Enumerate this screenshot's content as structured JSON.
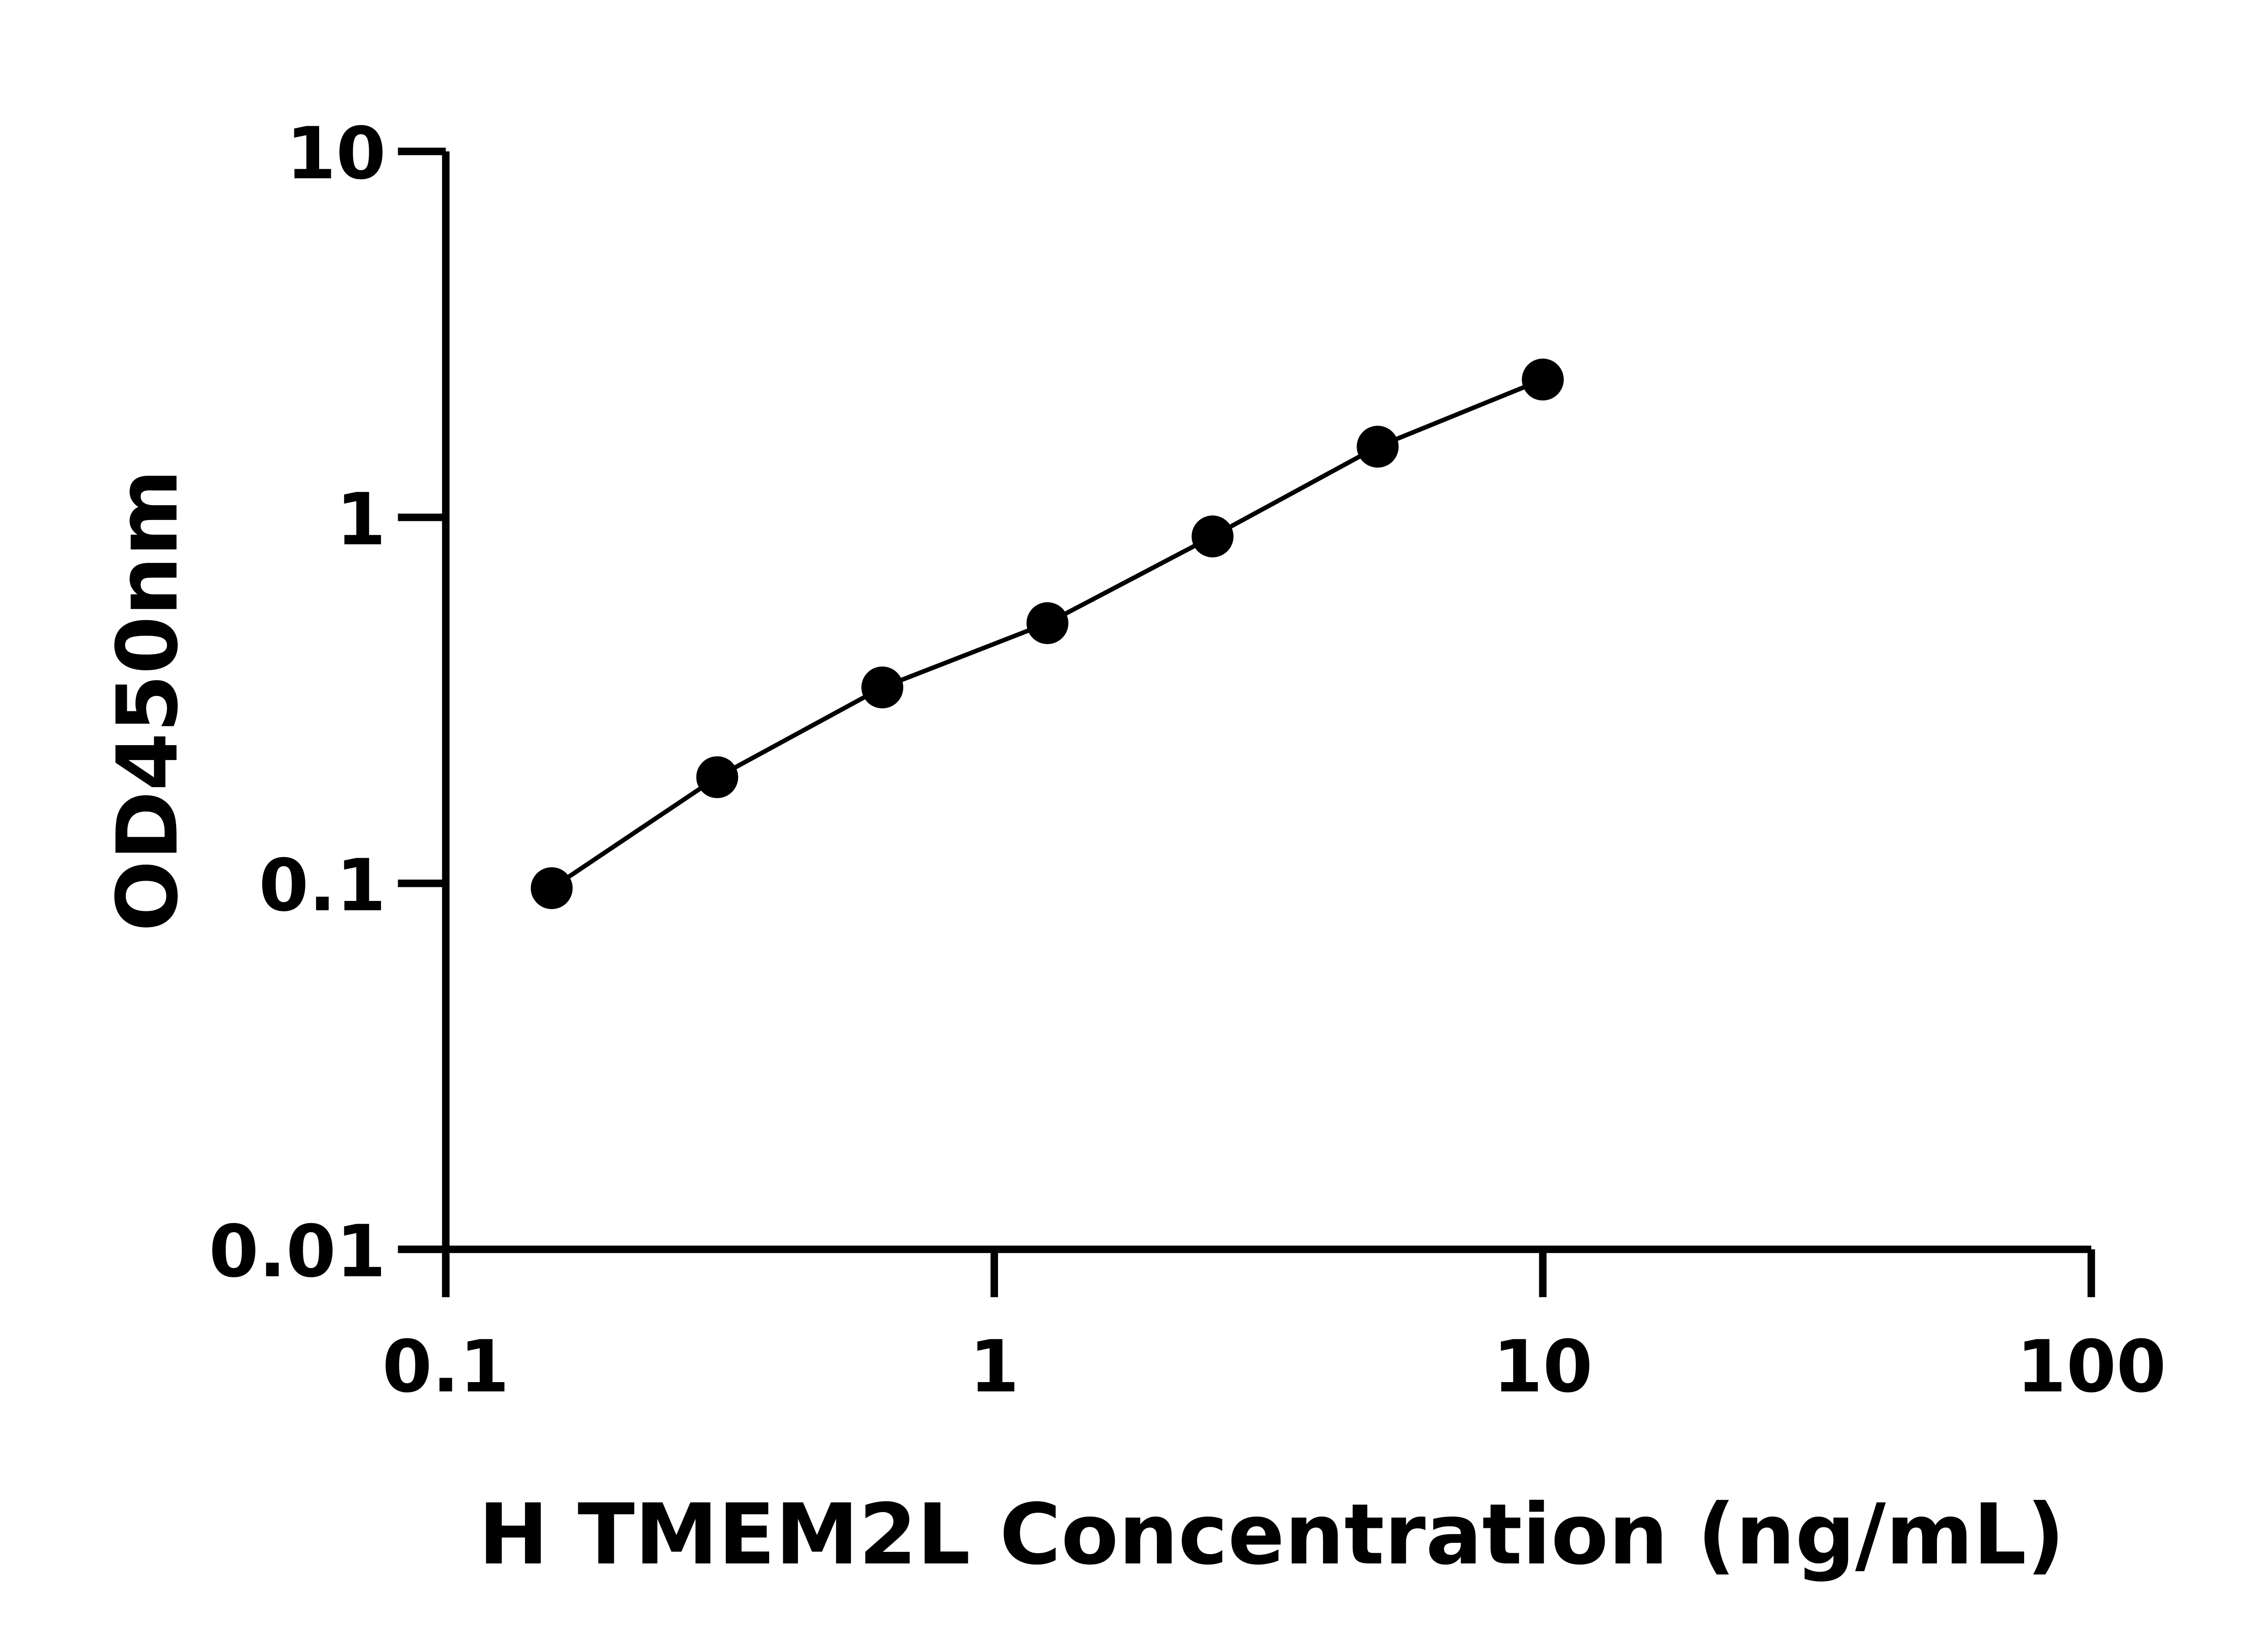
{
  "chart_data": {
    "type": "line",
    "title": "",
    "xlabel": "H TMEM2L Concentration (ng/mL)",
    "ylabel": "OD450nm",
    "x_scale": "log",
    "y_scale": "log",
    "xlim": [
      0.1,
      100
    ],
    "ylim": [
      0.01,
      10
    ],
    "x_ticks": [
      "0.1",
      "1",
      "10",
      "100"
    ],
    "y_ticks": [
      "0.01",
      "0.1",
      "1",
      "10"
    ],
    "grid": false,
    "legend": "none",
    "series": [
      {
        "x": [
          0.156,
          0.3125,
          0.625,
          1.25,
          2.5,
          5,
          10
        ],
        "y": [
          0.097,
          0.195,
          0.343,
          0.514,
          0.887,
          1.56,
          2.38
        ],
        "color": "#000000",
        "marker": "circle"
      }
    ]
  }
}
